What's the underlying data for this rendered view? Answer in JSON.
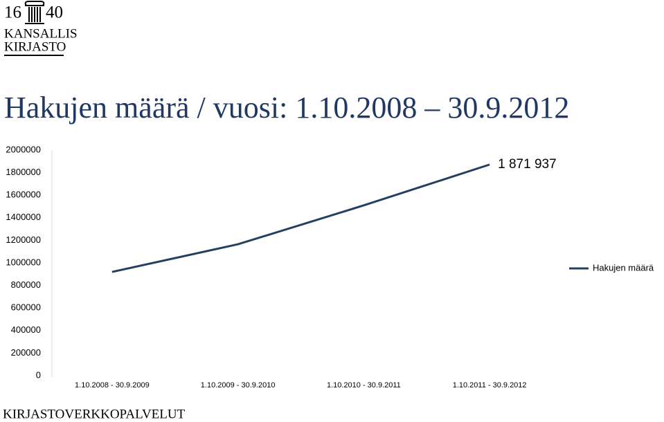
{
  "logo": {
    "year_left": "16",
    "year_right": "40",
    "line1": "KANSALLIS",
    "line2": "KIRJASTO"
  },
  "footer": "KIRJASTOVERKKOPALVELUT",
  "chart_data": {
    "type": "line",
    "title": "Hakujen määrä / vuosi: 1.10.2008 – 30.9.2012",
    "categories": [
      "1.10.2008 - 30.9.2009",
      "1.10.2009 - 30.9.2010",
      "1.10.2010 - 30.9.2011",
      "1.10.2011 - 30.9.2012"
    ],
    "series": [
      {
        "name": "Hakujen määrä",
        "color": "#243f60",
        "values": [
          920000,
          1165000,
          1510000,
          1871937
        ],
        "value_labels": [
          null,
          null,
          null,
          "1 871 937"
        ]
      }
    ],
    "ylim": [
      0,
      2000000
    ],
    "yticks": [
      0,
      200000,
      400000,
      600000,
      800000,
      1000000,
      1200000,
      1400000,
      1600000,
      1800000,
      2000000
    ],
    "grid": false,
    "legend": "right"
  }
}
